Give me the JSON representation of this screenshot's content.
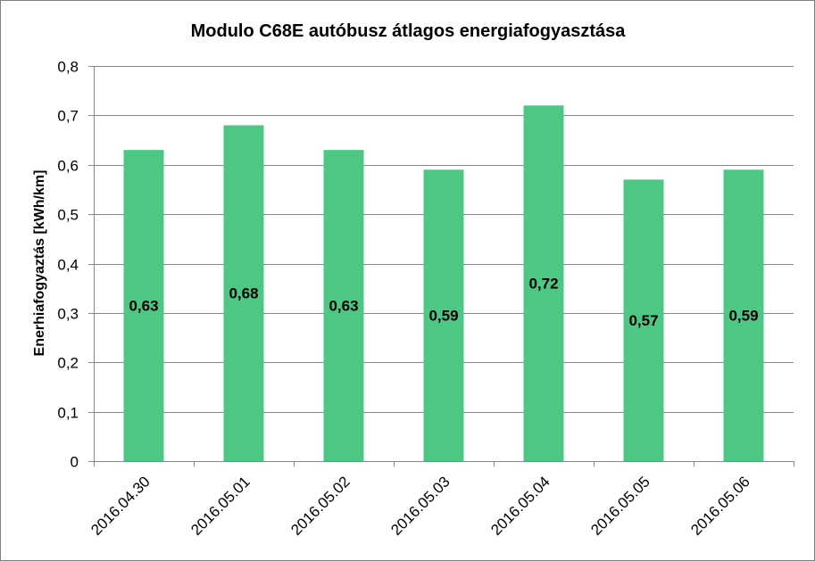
{
  "chart_data": {
    "type": "bar",
    "title": "Modulo C68E autóbusz átlagos energiafogyasztása",
    "xlabel": "",
    "ylabel": "Enerhiafogyaztás [kWh/km]",
    "categories": [
      "2016.04.30",
      "2016.05.01",
      "2016.05.02",
      "2016.05.03",
      "2016.05.04",
      "2016.05.05",
      "2016.05.06"
    ],
    "values": [
      0.63,
      0.68,
      0.63,
      0.59,
      0.72,
      0.57,
      0.59
    ],
    "data_labels": [
      "0,63",
      "0,68",
      "0,63",
      "0,59",
      "0,72",
      "0,57",
      "0,59"
    ],
    "ylim": [
      0,
      0.8
    ],
    "yticks": [
      0,
      0.1,
      0.2,
      0.3,
      0.4,
      0.5,
      0.6,
      0.7,
      0.8
    ],
    "ytick_labels": [
      "0",
      "0,1",
      "0,2",
      "0,3",
      "0,4",
      "0,5",
      "0,6",
      "0,7",
      "0,8"
    ],
    "grid": true,
    "legend": "none",
    "bar_color": "#4dc784",
    "grid_color": "#868686"
  }
}
